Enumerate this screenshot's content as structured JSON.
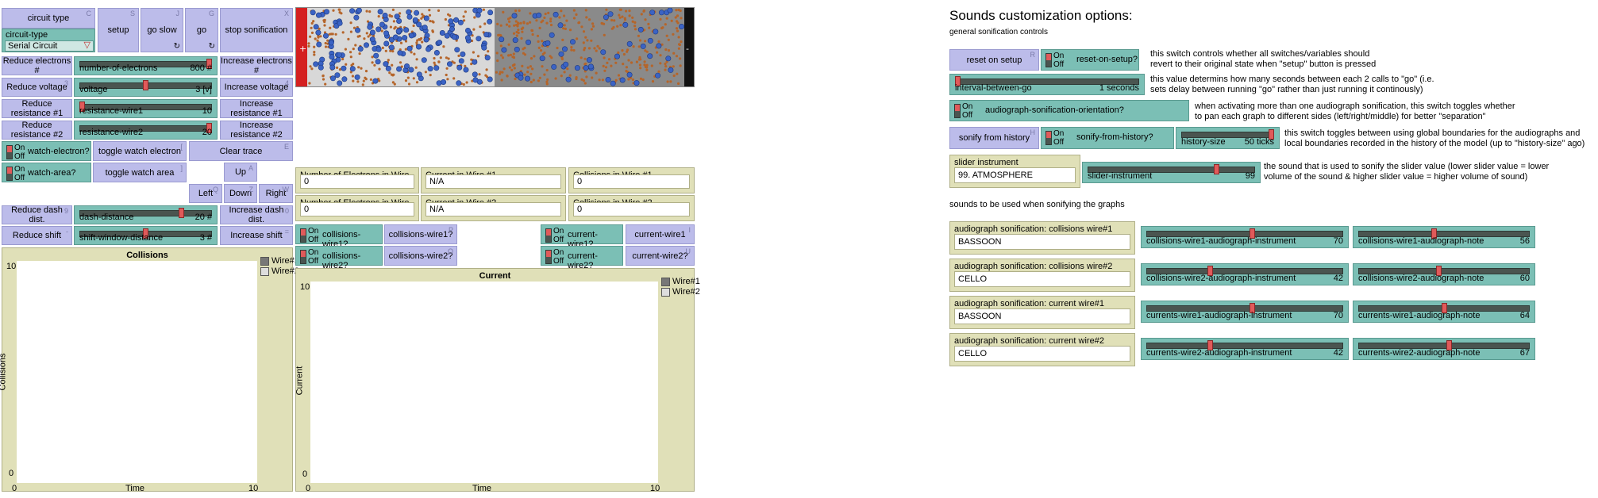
{
  "left": {
    "circuit_type_btn": "circuit type",
    "circuit_type_btn_key": "C",
    "chooser": {
      "label": "circuit-type",
      "value": "Serial Circuit"
    },
    "setup": {
      "label": "setup",
      "key": "S"
    },
    "go_slow": {
      "label": "go slow",
      "key": "J"
    },
    "go": {
      "label": "go",
      "key": "G"
    },
    "stop_sonification": {
      "label": "stop sonification",
      "key": "X"
    },
    "reduce_electrons": {
      "label": "Reduce electrons #",
      "key": ""
    },
    "increase_electrons": {
      "label": "Increase electrons #",
      "key": ""
    },
    "number_of_electrons": {
      "name": "number-of-electrons",
      "value": "800 #",
      "level": 1.0
    },
    "reduce_voltage": {
      "label": "Reduce voltage",
      "key": "3"
    },
    "increase_voltage": {
      "label": "Increase voltage",
      "key": "4"
    },
    "voltage": {
      "name": "voltage",
      "value": "3 [v]",
      "level": 0.5
    },
    "reduce_res1": {
      "label": "Reduce resistance #1",
      "key": ""
    },
    "increase_res1": {
      "label": "Increase resistance #1",
      "key": ""
    },
    "resistance_wire1": {
      "name": "resistance-wire1",
      "value": "10",
      "level": 0.0
    },
    "reduce_res2": {
      "label": "Reduce resistance #2",
      "key": ""
    },
    "increase_res2": {
      "label": "Increase resistance #2",
      "key": ""
    },
    "resistance_wire2": {
      "name": "resistance-wire2",
      "value": "20",
      "level": 1.0
    },
    "watch_electron_switch": {
      "on": "On",
      "off": "Off",
      "name": "watch-electron?"
    },
    "toggle_watch_electron": {
      "label": "toggle watch electron",
      "key": "["
    },
    "clear_trace": {
      "label": "Clear trace",
      "key": "E"
    },
    "watch_area_switch": {
      "on": "On",
      "off": "Off",
      "name": "watch-area?"
    },
    "toggle_watch_area": {
      "label": "toggle watch area",
      "key": "]"
    },
    "up": {
      "label": "Up",
      "key": "A"
    },
    "left": {
      "label": "Left",
      "key": "Q"
    },
    "down": {
      "label": "Down",
      "key": "Z"
    },
    "right": {
      "label": "Right",
      "key": "W"
    },
    "reduce_dash": {
      "label": "Reduce dash dist.",
      "key": "9"
    },
    "increase_dash": {
      "label": "Increase dash dist.",
      "key": "0"
    },
    "dash_distance": {
      "name": "dash-distance",
      "value": "20 #",
      "level": 0.78
    },
    "reduce_shift": {
      "label": "Reduce shift",
      "key": "-"
    },
    "increase_shift": {
      "label": "Increase shift",
      "key": "="
    },
    "shift_window_distance": {
      "name": "shift-window-distance",
      "value": "3 #",
      "level": 0.5
    }
  },
  "monitors": {
    "electrons_wire1": {
      "label": "Number of Electrons in Wire #1",
      "value": "0"
    },
    "current_wire1": {
      "label": "Current in Wire #1",
      "value": "N/A"
    },
    "collisions_wire1": {
      "label": "Collisions in Wire #1",
      "value": "0"
    },
    "electrons_wire2": {
      "label": "Number of Electrons in Wire #2",
      "value": "0"
    },
    "current_wire2": {
      "label": "Current in Wire #2",
      "value": "N/A"
    },
    "collisions_wire2": {
      "label": "Collisions in Wire #2",
      "value": "0"
    }
  },
  "mid_switches": {
    "collisions_wire1_sw": {
      "on": "On",
      "off": "Off",
      "name": "collisions-wire1?"
    },
    "collisions_wire1_btn": {
      "label": "collisions-wire1?",
      "key": "P"
    },
    "collisions_wire2_sw": {
      "on": "On",
      "off": "Off",
      "name": "collisions-wire2?"
    },
    "collisions_wire2_btn": {
      "label": "collisions-wire2?",
      "key": "O"
    },
    "current_wire1_sw": {
      "on": "On",
      "off": "Off",
      "name": "current-wire1?"
    },
    "current_wire1_btn": {
      "label": "current-wire1",
      "key": "I"
    },
    "current_wire2_sw": {
      "on": "On",
      "off": "Off",
      "name": "current-wire2?"
    },
    "current_wire2_btn": {
      "label": "current-wire2?",
      "key": "U"
    }
  },
  "plots": {
    "collisions": {
      "title": "Collisions",
      "ylabel": "Collisions",
      "xlabel": "Time",
      "ymax": "10",
      "ymin": "0",
      "xmin": "0",
      "xmax": "10",
      "legend": [
        "Wire#1",
        "Wire#2"
      ]
    },
    "current": {
      "title": "Current",
      "ylabel": "Current",
      "xlabel": "Time",
      "ymax": "10",
      "ymin": "0",
      "xmin": "0",
      "xmax": "10",
      "legend": [
        "Wire#1",
        "Wire#2"
      ]
    }
  },
  "sound": {
    "title": "Sounds customization options:",
    "general_heading": "general sonification controls",
    "reset_on_setup_btn": {
      "label": "reset on setup",
      "key": "R"
    },
    "reset_on_setup_sw": {
      "on": "On",
      "off": "Off",
      "name": "reset-on-setup?"
    },
    "reset_note": "this switch controls whether all switches/variables should\nrevert to their original state when \"setup\" button is pressed",
    "interval_slider": {
      "name": "interval-between-go",
      "value": "1 seconds",
      "level": 0.0
    },
    "interval_note": "this value determins how many seconds between each 2 calls to \"go\" (i.e.\nsets delay between running \"go\" rather than just running it continously)",
    "orientation_sw": {
      "on": "On",
      "off": "Off",
      "name": "audiograph-sonification-orientation?"
    },
    "orientation_note": "when activating more than one audiograph sonification, this switch toggles whether\nto pan each graph to different sides (left/right/middle) for better \"separation\"",
    "sonify_history_btn": {
      "label": "sonify from history",
      "key": "H"
    },
    "sonify_history_sw": {
      "on": "On",
      "off": "Off",
      "name": "sonify-from-history?"
    },
    "history_size": {
      "name": "history-size",
      "value": "50 ticks",
      "level": 1.0
    },
    "history_note": "this switch toggles between using global boundaries for the audiographs and\nlocal boundaries recorded in the history of the model (up to \"history-size\" ago)",
    "slider_instrument_chooser": {
      "label": "slider instrument",
      "value": "99. ATMOSPHERE"
    },
    "slider_instrument": {
      "name": "slider-instrument",
      "value": "99",
      "level": 0.78
    },
    "slider_instrument_note": "the sound that is used to sonify the slider value (lower slider value = lower\nvolume of the sound & higher slider value = higher volume of sound)",
    "graphs_heading": "sounds to be used when sonifying the graphs",
    "rows": [
      {
        "label": "audiograph sonification: collisions wire#1",
        "value": "BASSOON",
        "inst_name": "collisions-wire1-audiograph-instrument",
        "inst_val": "70",
        "inst_level": 0.54,
        "note_name": "collisions-wire1-audiograph-note",
        "note_val": "56",
        "note_level": 0.44
      },
      {
        "label": "audiograph sonification: collisions wire#2",
        "value": "CELLO",
        "inst_name": "collisions-wire2-audiograph-instrument",
        "inst_val": "42",
        "inst_level": 0.32,
        "note_name": "collisions-wire2-audiograph-note",
        "note_val": "60",
        "note_level": 0.47
      },
      {
        "label": "audiograph sonification: current wire#1",
        "value": "BASSOON",
        "inst_name": "currents-wire1-audiograph-instrument",
        "inst_val": "70",
        "inst_level": 0.54,
        "note_name": "currents-wire1-audiograph-note",
        "note_val": "64",
        "note_level": 0.5
      },
      {
        "label": "audiograph sonification: current wire#2",
        "value": "CELLO",
        "inst_name": "currents-wire2-audiograph-instrument",
        "inst_val": "42",
        "inst_level": 0.32,
        "note_name": "currents-wire2-audiograph-note",
        "note_val": "67",
        "note_level": 0.53
      }
    ]
  },
  "colors": {
    "button": "#bcbcea",
    "slider": "#7bbfb5",
    "monitor": "#e0e0b8",
    "wire_light": "#d8d8d8",
    "wire_dark": "#8a8a8a",
    "electron": "#3b63c4",
    "atom": "#b5652a",
    "battery_red": "#d42020"
  }
}
